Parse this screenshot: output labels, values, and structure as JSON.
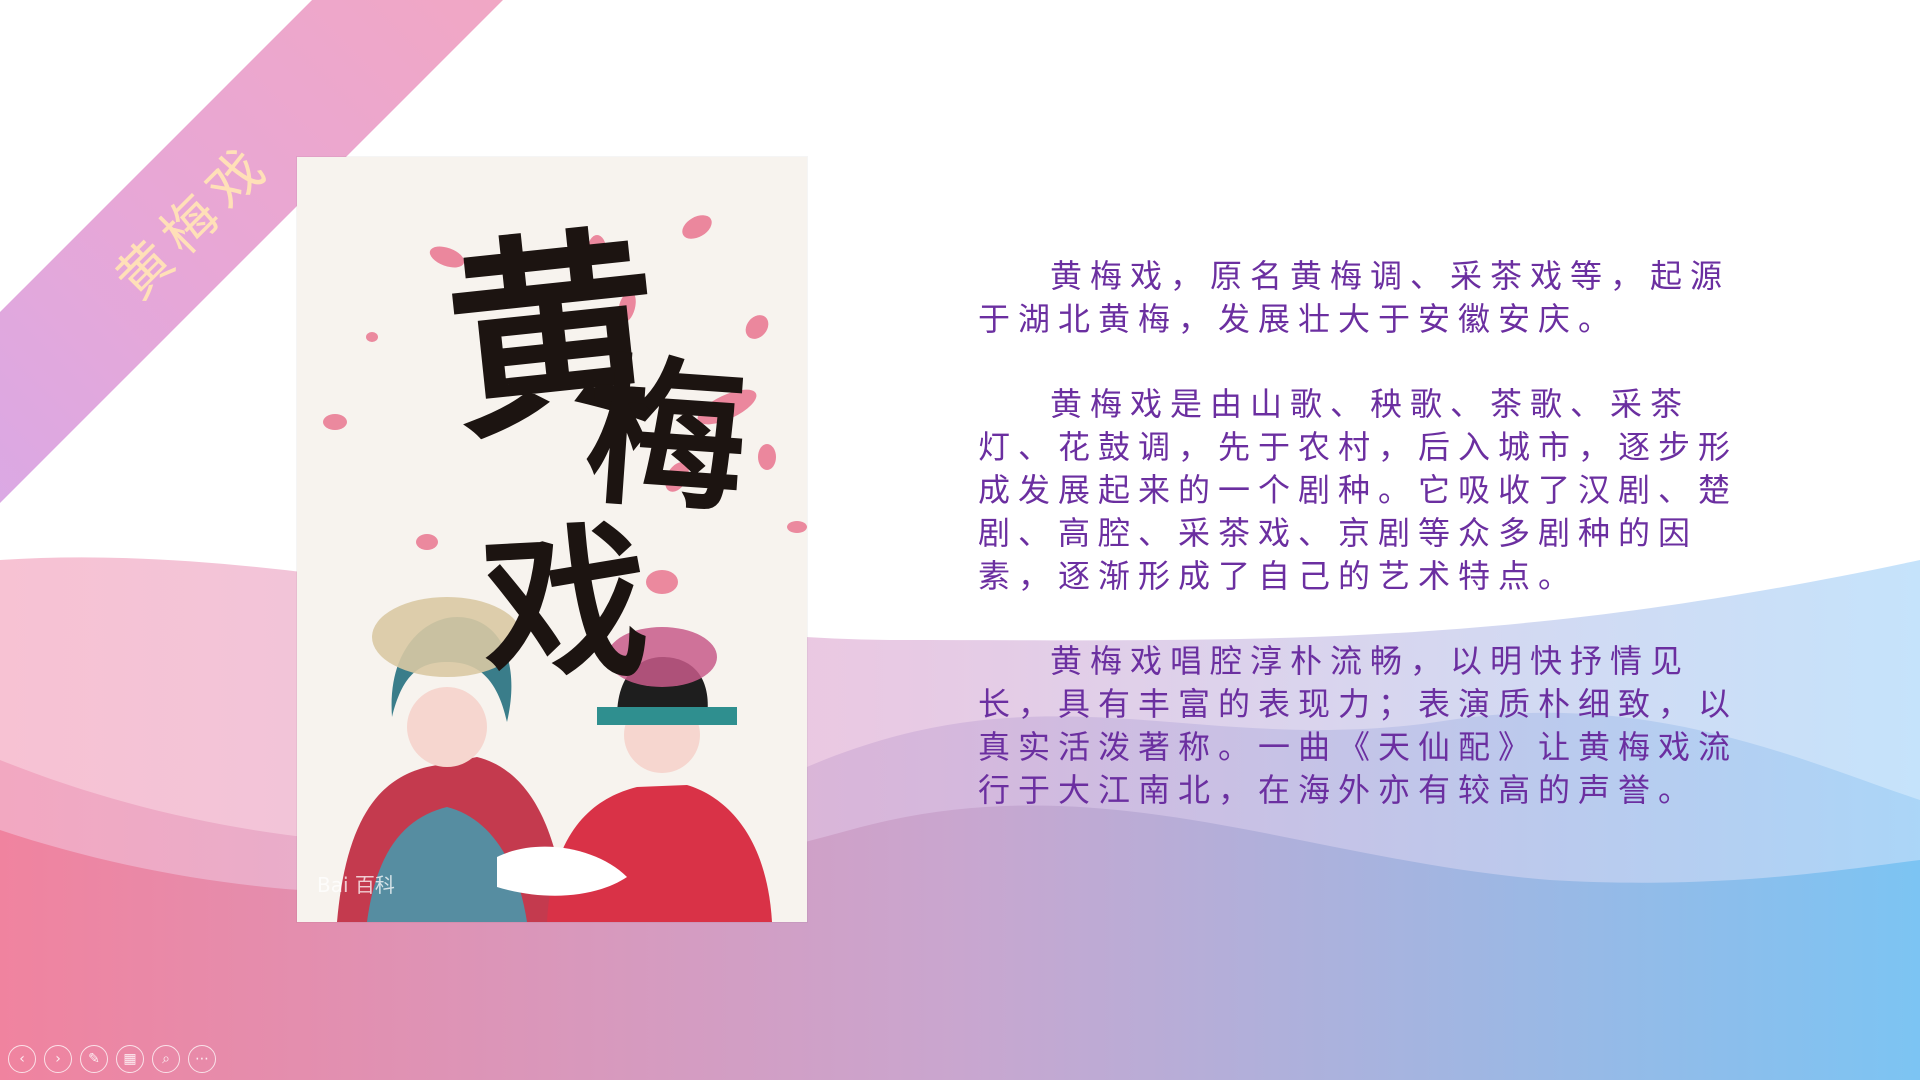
{
  "ribbon": {
    "title": "黄梅戏"
  },
  "poster": {
    "title_chars": [
      "黄",
      "梅",
      "戏"
    ],
    "watermark": "Bai 百科"
  },
  "content": {
    "paragraphs": [
      "黄梅戏，原名黄梅调、采茶戏等，起源于湖北黄梅，发展壮大于安徽安庆。",
      "黄梅戏是由山歌、秧歌、茶歌、采茶灯、花鼓调，先于农村，后入城市，逐步形成发展起来的一个剧种。它吸收了汉剧、楚剧、高腔、采茶戏、京剧等众多剧种的因素，逐渐形成了自己的艺术特点。",
      "黄梅戏唱腔淳朴流畅，以明快抒情见长，具有丰富的表现力；表演质朴细致，以真实活泼著称。一曲《天仙配》让黄梅戏流行于大江南北，在海外亦有较高的声誉。"
    ]
  },
  "controls": {
    "prev": "‹",
    "next": "›",
    "pen": "✎",
    "slides": "▦",
    "zoom": "⌕",
    "more": "⋯"
  },
  "colors": {
    "text": "#6b2fa0",
    "ribbon_text": "#ffe0b8",
    "wave_pink": "#f0829e",
    "wave_blue": "#7cc4f3"
  },
  "icons": [
    "prev-icon",
    "next-icon",
    "pen-icon",
    "slides-icon",
    "zoom-icon",
    "more-icon"
  ]
}
